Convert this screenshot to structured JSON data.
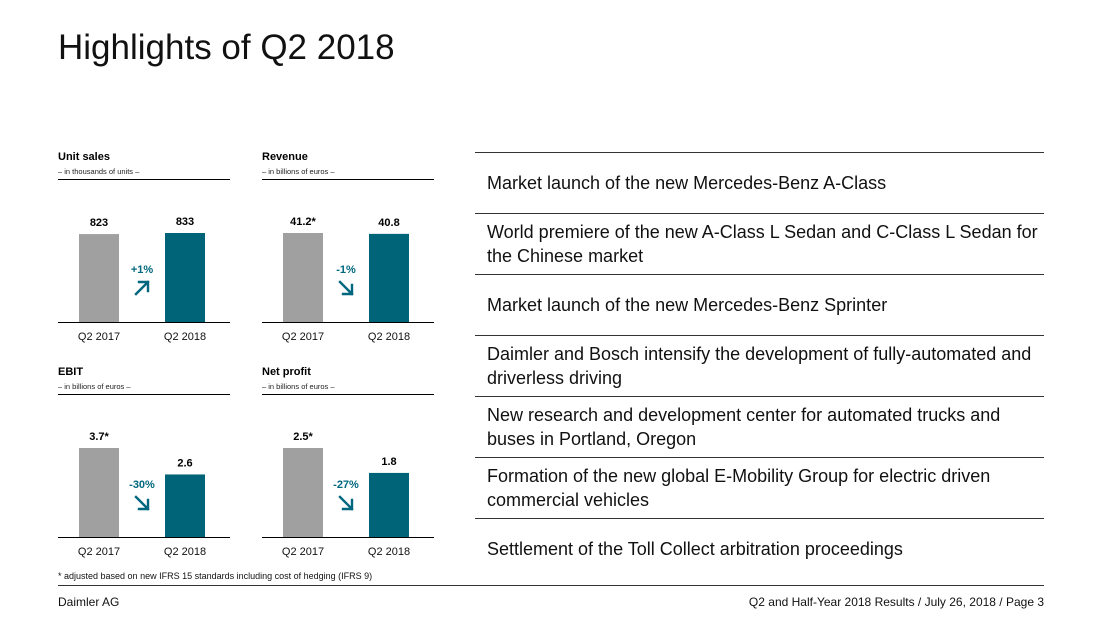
{
  "title": "Highlights of Q2 2018",
  "colors": {
    "prior": "#a0a0a0",
    "current": "#006478",
    "arrow": "#00677f"
  },
  "chart_data": [
    {
      "type": "bar",
      "title": "Unit sales",
      "subtitle": "– in thousands of units –",
      "categories": [
        "Q2 2017",
        "Q2 2018"
      ],
      "values": [
        823,
        833
      ],
      "value_labels": [
        "823",
        "833"
      ],
      "change": "+1%",
      "direction": "up",
      "ylim": [
        0,
        833
      ]
    },
    {
      "type": "bar",
      "title": "Revenue",
      "subtitle": "– in billions of euros –",
      "categories": [
        "Q2 2017",
        "Q2 2018"
      ],
      "values": [
        41.2,
        40.8
      ],
      "value_labels": [
        "41.2*",
        "40.8"
      ],
      "change": "-1%",
      "direction": "down",
      "ylim": [
        0,
        41.2
      ]
    },
    {
      "type": "bar",
      "title": "EBIT",
      "subtitle": "– in billions of euros –",
      "categories": [
        "Q2 2017",
        "Q2 2018"
      ],
      "values": [
        3.7,
        2.6
      ],
      "value_labels": [
        "3.7*",
        "2.6"
      ],
      "change": "-30%",
      "direction": "down",
      "ylim": [
        0,
        3.7
      ]
    },
    {
      "type": "bar",
      "title": "Net profit",
      "subtitle": "– in billions of euros –",
      "categories": [
        "Q2 2017",
        "Q2 2018"
      ],
      "values": [
        2.5,
        1.8
      ],
      "value_labels": [
        "2.5*",
        "1.8"
      ],
      "change": "-27%",
      "direction": "down",
      "ylim": [
        0,
        2.5
      ]
    }
  ],
  "footnote": "* adjusted based on new IFRS 15 standards including cost of hedging (IFRS 9)",
  "highlights": [
    "Market launch of the new Mercedes-Benz A-Class",
    "World premiere of the new A-Class L Sedan and C-Class L Sedan for the Chinese market",
    "Market launch of the new Mercedes-Benz Sprinter",
    "Daimler and Bosch intensify the development of fully-automated and driverless driving",
    "New research and development center for automated trucks and buses in Portland, Oregon",
    "Formation of the new global E-Mobility Group for electric driven commercial vehicles",
    "Settlement of the Toll Collect arbitration proceedings"
  ],
  "footer": {
    "company": "Daimler AG",
    "info": "Q2 and Half-Year 2018 Results / July 26, 2018 / Page 3"
  }
}
